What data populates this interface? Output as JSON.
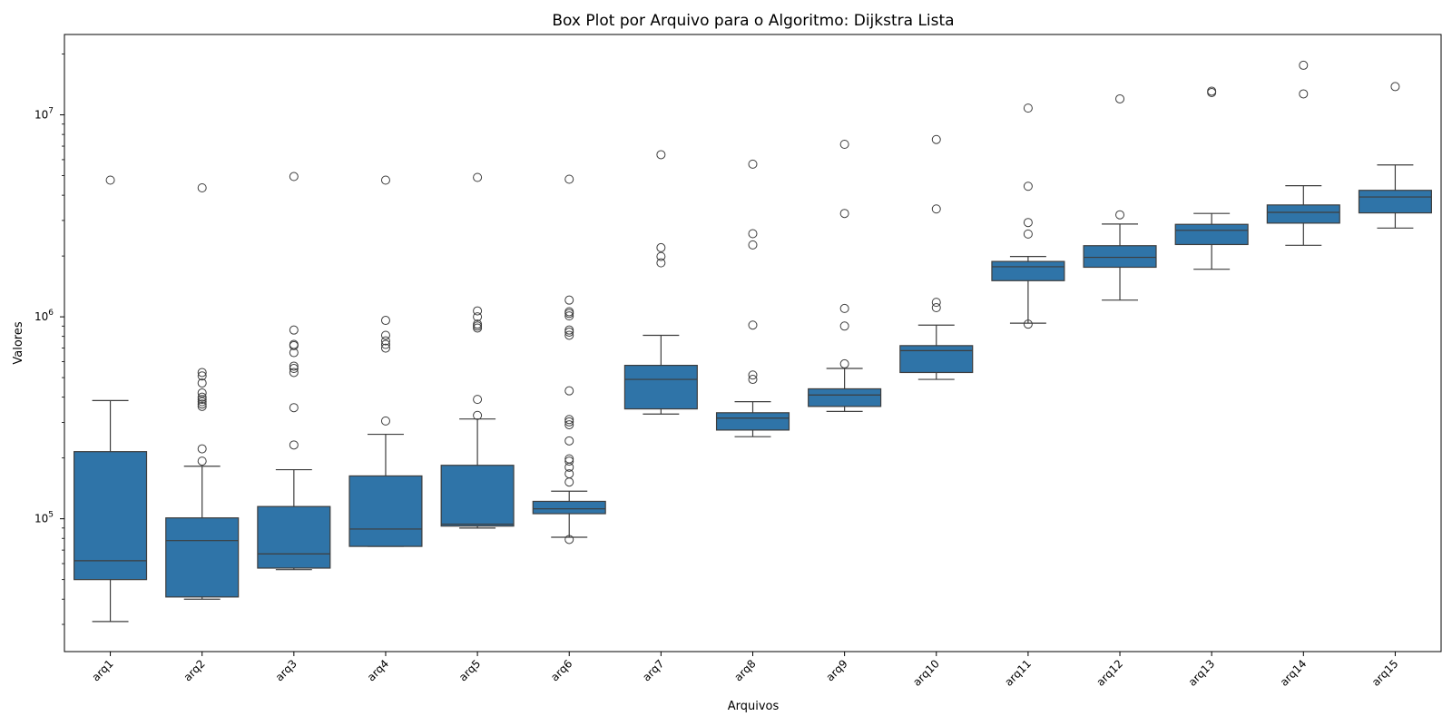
{
  "chart_data": {
    "type": "box",
    "title": "Box Plot por Arquivo para o Algoritmo: Dijkstra Lista",
    "xlabel": "Arquivos",
    "ylabel": "Valores",
    "yscale": "log",
    "ylim": [
      22000,
      25000000
    ],
    "y_ticks": [
      {
        "value": 100000,
        "base": "10",
        "exp": "5"
      },
      {
        "value": 1000000,
        "base": "10",
        "exp": "6"
      },
      {
        "value": 10000000,
        "base": "10",
        "exp": "7"
      }
    ],
    "grid": false,
    "box_color": "#2f74a8",
    "edge_color": "#3d3d3d",
    "categories": [
      "arq1",
      "arq2",
      "arq3",
      "arq4",
      "arq5",
      "arq6",
      "arq7",
      "arq8",
      "arq9",
      "arq10",
      "arq11",
      "arq12",
      "arq13",
      "arq14",
      "arq15"
    ],
    "boxes": [
      {
        "whislo": 31000,
        "q1": 50000,
        "med": 62000,
        "q3": 215000,
        "whishi": 385000,
        "fliers": [
          4750000
        ]
      },
      {
        "whislo": 40000,
        "q1": 41000,
        "med": 78000,
        "q3": 101000,
        "whishi": 182000,
        "fliers": [
          193000,
          222000,
          360000,
          370000,
          380000,
          390000,
          400000,
          420000,
          470000,
          510000,
          530000,
          4350000
        ]
      },
      {
        "whislo": 56000,
        "q1": 57000,
        "med": 67000,
        "q3": 115000,
        "whishi": 175000,
        "fliers": [
          232000,
          355000,
          530000,
          555000,
          570000,
          665000,
          720000,
          730000,
          860000,
          4950000
        ]
      },
      {
        "whislo": 73000,
        "q1": 73000,
        "med": 89000,
        "q3": 163000,
        "whishi": 262000,
        "fliers": [
          305000,
          700000,
          730000,
          760000,
          810000,
          960000,
          4750000
        ]
      },
      {
        "whislo": 90000,
        "q1": 92000,
        "med": 94000,
        "q3": 184000,
        "whishi": 312000,
        "fliers": [
          325000,
          390000,
          880000,
          900000,
          920000,
          1000000,
          1070000,
          4900000
        ]
      },
      {
        "whislo": 81000,
        "q1": 106000,
        "med": 112000,
        "q3": 122000,
        "whishi": 137000,
        "fliers": [
          79000,
          152000,
          167000,
          180000,
          193000,
          198000,
          243000,
          292000,
          302000,
          310000,
          430000,
          810000,
          840000,
          860000,
          1010000,
          1040000,
          1060000,
          1210000,
          4800000
        ]
      },
      {
        "whislo": 330000,
        "q1": 350000,
        "med": 490000,
        "q3": 575000,
        "whishi": 810000,
        "fliers": [
          1850000,
          1990000,
          2200000,
          6350000
        ]
      },
      {
        "whislo": 255000,
        "q1": 275000,
        "med": 315000,
        "q3": 335000,
        "whishi": 380000,
        "fliers": [
          490000,
          515000,
          910000,
          2270000,
          2580000,
          5700000
        ]
      },
      {
        "whislo": 340000,
        "q1": 360000,
        "med": 410000,
        "q3": 440000,
        "whishi": 555000,
        "fliers": [
          585000,
          900000,
          1100000,
          3250000,
          7150000
        ]
      },
      {
        "whislo": 490000,
        "q1": 530000,
        "med": 680000,
        "q3": 720000,
        "whishi": 910000,
        "fliers": [
          1110000,
          1180000,
          3420000,
          7550000
        ]
      },
      {
        "whislo": 930000,
        "q1": 1510000,
        "med": 1770000,
        "q3": 1880000,
        "whishi": 1990000,
        "fliers": [
          920000,
          2570000,
          2930000,
          4430000,
          10800000
        ]
      },
      {
        "whislo": 1210000,
        "q1": 1760000,
        "med": 1970000,
        "q3": 2250000,
        "whishi": 2880000,
        "fliers": [
          3200000,
          12000000
        ]
      },
      {
        "whislo": 1720000,
        "q1": 2280000,
        "med": 2680000,
        "q3": 2870000,
        "whishi": 3250000,
        "fliers": [
          12900000,
          13100000
        ]
      },
      {
        "whislo": 2260000,
        "q1": 2910000,
        "med": 3290000,
        "q3": 3580000,
        "whishi": 4460000,
        "fliers": [
          12700000,
          17600000
        ]
      },
      {
        "whislo": 2750000,
        "q1": 3270000,
        "med": 3920000,
        "q3": 4230000,
        "whishi": 5650000,
        "fliers": [
          13800000
        ]
      }
    ]
  }
}
